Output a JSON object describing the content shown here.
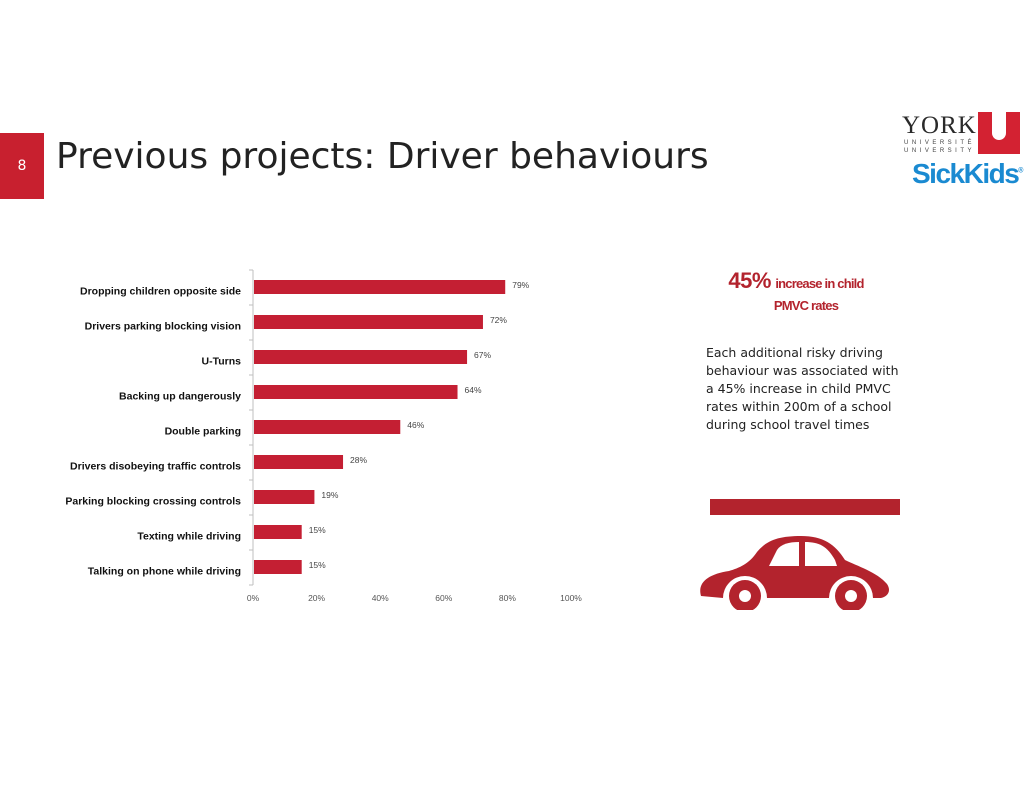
{
  "slide": {
    "number": "8",
    "title": "Previous projects: Driver behaviours"
  },
  "logos": {
    "york": {
      "word": "YORK",
      "sub1": "UNIVERSITÉ",
      "sub2": "UNIVERSITY",
      "color": "#d32232"
    },
    "sickkids": {
      "text": "SickKids",
      "mark": "®",
      "color": "#1a8ad1"
    }
  },
  "chart_data": {
    "type": "bar",
    "orientation": "horizontal",
    "categories": [
      "Dropping children opposite side",
      "Drivers parking blocking vision",
      "U-Turns",
      "Backing up dangerously",
      "Double parking",
      "Drivers disobeying traffic controls",
      "Parking blocking crossing controls",
      "Texting while driving",
      "Talking on phone while driving"
    ],
    "values": [
      79,
      72,
      67,
      64,
      46,
      28,
      19,
      15,
      15
    ],
    "value_labels": [
      "79%",
      "72%",
      "67%",
      "64%",
      "46%",
      "28%",
      "19%",
      "15%",
      "15%"
    ],
    "xlim": [
      0,
      100
    ],
    "xticks": [
      "0%",
      "20%",
      "40%",
      "60%",
      "80%",
      "100%"
    ],
    "title": "",
    "xlabel": "",
    "ylabel": "",
    "grid": false,
    "bar_color": "#c41f33"
  },
  "stat": {
    "number": "45%",
    "text": "increase in child",
    "line2": "PMVC rates"
  },
  "description": "Each additional risky driving behaviour was associated with a 45% increase in child PMVC rates within 200m of a school during school travel times",
  "accent_color": "#b3232d",
  "icons": {
    "car": "car-icon"
  }
}
